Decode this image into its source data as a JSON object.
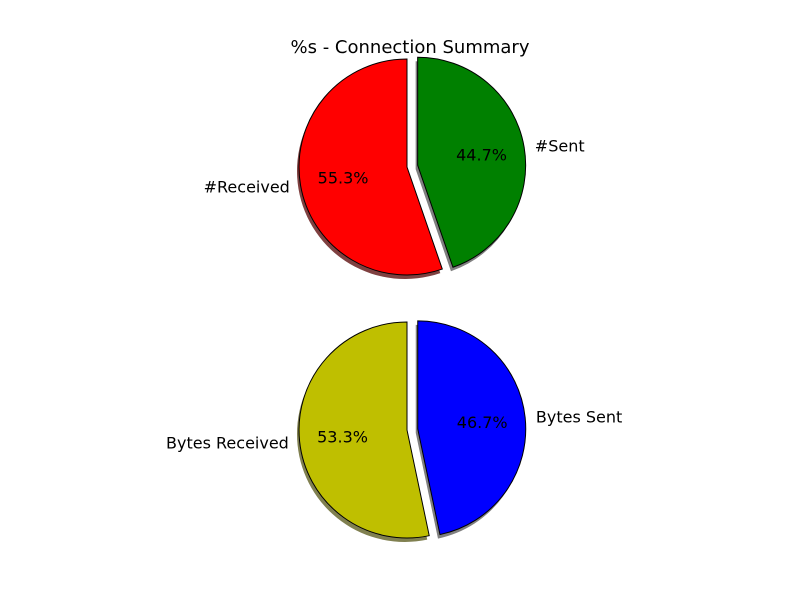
{
  "figure": {
    "title": "%s - Connection Summary"
  },
  "chart_data": [
    {
      "type": "pie",
      "title": "",
      "labels": [
        "#Received",
        "#Sent"
      ],
      "values": [
        55.3,
        44.7
      ],
      "percent_labels": [
        "55.3%",
        "44.7%"
      ],
      "colors": [
        "#ff0000",
        "#008000"
      ],
      "shadow_colors": [
        "#7f4040",
        "#808080"
      ],
      "explode": [
        0,
        0.1
      ],
      "start_angle_deg": 90,
      "shadow": true,
      "legend": "none"
    },
    {
      "type": "pie",
      "title": "",
      "labels": [
        "Bytes Received",
        "Bytes Sent"
      ],
      "values": [
        53.3,
        46.7
      ],
      "percent_labels": [
        "53.3%",
        "46.7%"
      ],
      "colors": [
        "#bfbf00",
        "#0000ff"
      ],
      "shadow_colors": [
        "#808050",
        "#808080"
      ],
      "explode": [
        0,
        0.1
      ],
      "start_angle_deg": 90,
      "shadow": true,
      "legend": "none"
    }
  ]
}
